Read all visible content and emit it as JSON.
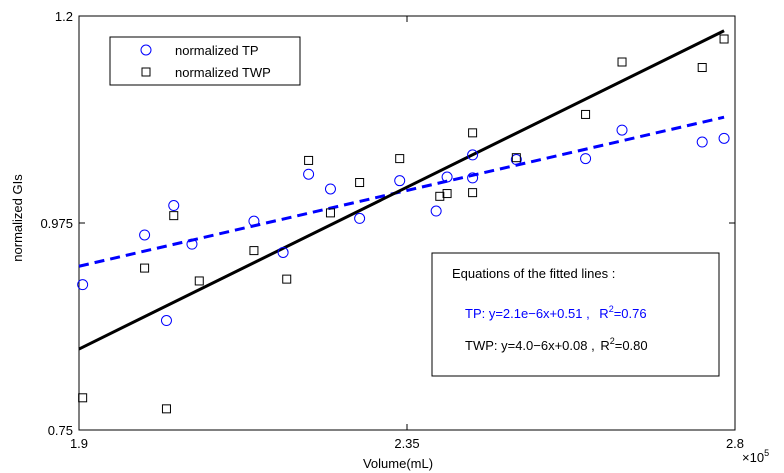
{
  "chart_data": {
    "type": "scatter",
    "title": "",
    "xlabel": "Volume(mL)",
    "ylabel": "normalized GIs",
    "x_scale_note": "×10^5",
    "xlim": [
      1.9,
      2.8
    ],
    "ylim": [
      0.75,
      1.2
    ],
    "x_ticks": [
      1.9,
      2.35,
      2.8
    ],
    "x_tick_labels": [
      "1.9",
      "2.35",
      "2.8"
    ],
    "y_ticks": [
      0.75,
      0.975,
      1.2
    ],
    "y_tick_labels": [
      "0.75",
      "0.975",
      "1.2"
    ],
    "grid": false,
    "legend_position": "top-left",
    "series": [
      {
        "name": "normalized TP",
        "marker": "circle",
        "color": "#0000ff",
        "points": [
          [
            1.905,
            0.908
          ],
          [
            1.99,
            0.962
          ],
          [
            2.02,
            0.869
          ],
          [
            2.03,
            0.994
          ],
          [
            2.055,
            0.952
          ],
          [
            2.14,
            0.977
          ],
          [
            2.18,
            0.943
          ],
          [
            2.215,
            1.028
          ],
          [
            2.245,
            1.012
          ],
          [
            2.285,
            0.98
          ],
          [
            2.34,
            1.021
          ],
          [
            2.39,
            0.988
          ],
          [
            2.405,
            1.025
          ],
          [
            2.44,
            1.049
          ],
          [
            2.44,
            1.024
          ],
          [
            2.5,
            1.044
          ],
          [
            2.595,
            1.045
          ],
          [
            2.645,
            1.076
          ],
          [
            2.755,
            1.063
          ],
          [
            2.785,
            1.067
          ]
        ]
      },
      {
        "name": "normalized TWP",
        "marker": "square",
        "color": "#000000",
        "points": [
          [
            1.905,
            0.785
          ],
          [
            1.99,
            0.926
          ],
          [
            2.02,
            0.773
          ],
          [
            2.03,
            0.983
          ],
          [
            2.065,
            0.912
          ],
          [
            2.14,
            0.945
          ],
          [
            2.185,
            0.914
          ],
          [
            2.215,
            1.043
          ],
          [
            2.245,
            0.986
          ],
          [
            2.285,
            1.019
          ],
          [
            2.34,
            1.045
          ],
          [
            2.395,
            1.004
          ],
          [
            2.405,
            1.007
          ],
          [
            2.44,
            1.073
          ],
          [
            2.44,
            1.008
          ],
          [
            2.5,
            1.046
          ],
          [
            2.595,
            1.093
          ],
          [
            2.645,
            1.15
          ],
          [
            2.755,
            1.144
          ],
          [
            2.785,
            1.175
          ]
        ]
      }
    ],
    "fitted_lines": [
      {
        "series": "normalized TP",
        "color": "#0000ff",
        "style": "dashed",
        "x": [
          1.9,
          2.785
        ],
        "y": [
          0.928,
          1.09
        ]
      },
      {
        "series": "normalized TWP",
        "color": "#000000",
        "style": "solid",
        "x": [
          1.9,
          2.785
        ],
        "y": [
          0.838,
          1.184
        ]
      }
    ],
    "annotation": {
      "heading": "Equations of the fitted lines :",
      "tp_equation": "TP: y=2.1e−6x+0.51",
      "tp_r2_label": "R",
      "tp_r2_value": "=0.76",
      "twp_equation": "TWP: y=4.0−6x+0.08",
      "twp_r2_label": "R",
      "twp_r2_value": "=0.80",
      "superscript": "2",
      "separator": " , "
    }
  }
}
